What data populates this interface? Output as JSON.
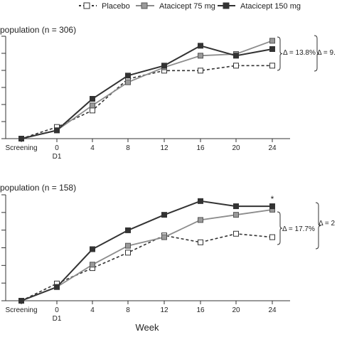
{
  "legend": {
    "items": [
      {
        "label": "Placebo",
        "color": "#333333",
        "marker": "open-square",
        "dash": true
      },
      {
        "label": "Atacicept 75 mg",
        "color": "#8c8c8c",
        "marker": "gray-square",
        "dash": false
      },
      {
        "label": "Atacicept 150 mg",
        "color": "#333333",
        "marker": "filled-square",
        "dash": false
      }
    ]
  },
  "xlabel": "Week",
  "chart_data": [
    {
      "type": "line",
      "title": "population (n = 306)",
      "categories": [
        "Screening",
        "0",
        "4",
        "8",
        "12",
        "16",
        "20",
        "24"
      ],
      "category_sublabels": [
        "",
        "D1",
        "",
        "",
        "",
        "",
        "",
        ""
      ],
      "ylim": [
        0,
        60
      ],
      "series": [
        {
          "name": "Placebo",
          "values": [
            0,
            7,
            17,
            36,
            41,
            41,
            44,
            44
          ]
        },
        {
          "name": "Atacicept 75 mg",
          "values": [
            0,
            5,
            20,
            34,
            43,
            50,
            51,
            59
          ]
        },
        {
          "name": "Atacicept 150 mg",
          "values": [
            0,
            5,
            24,
            38,
            44,
            56,
            50,
            54
          ]
        }
      ],
      "annotations": [
        "Δ = 13.8%",
        "Δ = 9."
      ]
    },
    {
      "type": "line",
      "title": "population (n = 158)",
      "categories": [
        "Screening",
        "0",
        "4",
        "8",
        "12",
        "16",
        "20",
        "24"
      ],
      "category_sublabels": [
        "",
        "D1",
        "",
        "",
        "",
        "",
        "",
        ""
      ],
      "ylim": [
        0,
        60
      ],
      "series": [
        {
          "name": "Placebo",
          "values": [
            0,
            10,
            19,
            28,
            38,
            34,
            39,
            37
          ]
        },
        {
          "name": "Atacicept 75 mg",
          "values": [
            0,
            8,
            21,
            32,
            37,
            47,
            50,
            53
          ]
        },
        {
          "name": "Atacicept 150 mg",
          "values": [
            0,
            8,
            30,
            41,
            50,
            58,
            55,
            55
          ]
        }
      ],
      "annotations": [
        "Δ = 17.7%",
        "Δ = 2"
      ],
      "markers": [
        {
          "label": "*",
          "category": "24"
        }
      ]
    }
  ]
}
